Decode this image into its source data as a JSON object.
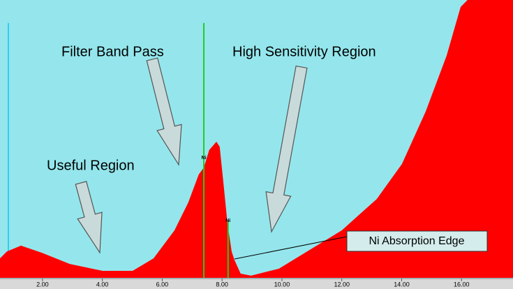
{
  "chart_data": {
    "type": "area",
    "annotations": [
      "Filter Band Pass",
      "High Sensitivity Region",
      "Useful Region",
      "Ni Absorption Edge"
    ],
    "x": [
      0.58,
      0.81,
      1.28,
      1.98,
      2.91,
      4.01,
      5.01,
      5.71,
      6.41,
      6.87,
      7.22,
      7.39,
      7.57,
      7.81,
      7.92,
      8.04,
      8.18,
      8.32,
      8.41,
      8.62,
      8.97,
      9.9,
      10.84,
      12.0,
      13.17,
      14.01,
      14.8,
      15.5,
      15.97,
      16.2
    ],
    "values": [
      7.0,
      9.5,
      11.6,
      9.0,
      5.0,
      2.5,
      2.5,
      7.0,
      17.1,
      27.1,
      37.2,
      39.7,
      46.0,
      49.0,
      47.2,
      34.7,
      19.6,
      9.5,
      6.5,
      1.5,
      0.8,
      3.3,
      9.5,
      17.1,
      28.4,
      41.0,
      59.8,
      79.9,
      97.5,
      100
    ],
    "color": "#ff0000",
    "markers": [
      {
        "label": "Ni",
        "x": 7.39,
        "color": "#22cc22"
      },
      {
        "label": "Ni",
        "x": 8.2,
        "color": "#22cc22"
      }
    ],
    "xlim": [
      0.58,
      17.72
    ],
    "ylim": [
      0,
      100
    ],
    "xticks": [
      {
        "value": 2,
        "label": "2.00"
      },
      {
        "value": 4,
        "label": "4.00"
      },
      {
        "value": 6,
        "label": "6.00"
      },
      {
        "value": 8,
        "label": "8.00"
      },
      {
        "value": 10,
        "label": "10.00"
      },
      {
        "value": 12,
        "label": "12.00"
      },
      {
        "value": 14,
        "label": "14.00"
      },
      {
        "value": 16,
        "label": "16.00"
      }
    ]
  }
}
